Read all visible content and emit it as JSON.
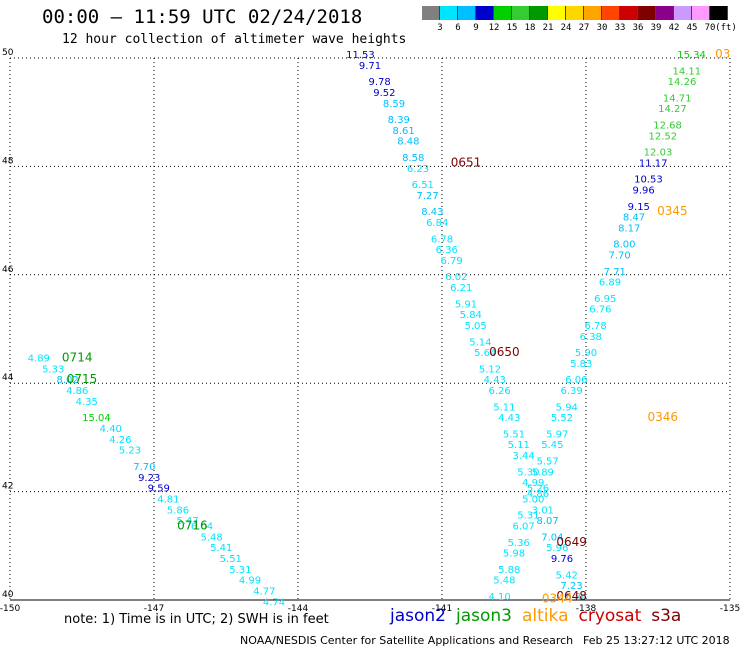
{
  "title": "00:00 — 11:59 UTC 02/24/2018",
  "subtitle": "12 hour collection of altimeter wave heights",
  "colorbar": {
    "unit": "(ft)",
    "labels": [
      "3",
      "6",
      "9",
      "12",
      "15",
      "18",
      "21",
      "24",
      "27",
      "30",
      "33",
      "36",
      "39",
      "42",
      "45",
      "70"
    ],
    "colors": [
      "#808080",
      "#00e5ff",
      "#00bfff",
      "#0000cd",
      "#00d000",
      "#33cc33",
      "#009900",
      "#ffff00",
      "#ffd700",
      "#ffa500",
      "#ff4500",
      "#cc0000",
      "#800000",
      "#8b008b",
      "#cc99ff",
      "#ff99ff",
      "#000000"
    ]
  },
  "note": "note: 1) Time is in UTC; 2) SWH is in feet",
  "legend": [
    {
      "label": "jason2",
      "color": "#0000cc"
    },
    {
      "label": "jason3",
      "color": "#009900"
    },
    {
      "label": "altika",
      "color": "#ff9900"
    },
    {
      "label": "cryosat",
      "color": "#cc0000"
    },
    {
      "label": "s3a",
      "color": "#800000"
    }
  ],
  "credit": "NOAA/NESDIS Center for Satellite Applications and Research",
  "timestamp": "Feb 25 13:27:12 UTC 2018",
  "chart_data": {
    "type": "scatter",
    "title": "00:00 — 11:59 UTC 02/24/2018",
    "subtitle": "12 hour collection of altimeter wave heights",
    "xlim": [
      -150,
      -135
    ],
    "ylim": [
      40,
      50
    ],
    "x_ticks": [
      "-150",
      "-147",
      "-144",
      "-141",
      "-138",
      "-135"
    ],
    "y_ticks": [
      "40",
      "42",
      "44",
      "46",
      "48",
      "50"
    ],
    "grid": true,
    "legend_position": "bottom",
    "series": [
      {
        "name": "west_track",
        "points": [
          {
            "x": -149.4,
            "y": 44.4,
            "v": "4.89",
            "c": "#00e5ff"
          },
          {
            "x": -149.1,
            "y": 44.2,
            "v": "5.33",
            "c": "#00e5ff"
          },
          {
            "x": -148.8,
            "y": 44.0,
            "v": "8.02",
            "c": "#00bfff"
          },
          {
            "x": -148.6,
            "y": 43.8,
            "v": "4.86",
            "c": "#00e5ff"
          },
          {
            "x": -148.4,
            "y": 43.6,
            "v": "4.35",
            "c": "#00e5ff"
          },
          {
            "x": -148.2,
            "y": 43.3,
            "v": "15.04",
            "c": "#00d000"
          },
          {
            "x": -147.9,
            "y": 43.1,
            "v": "4.40",
            "c": "#00e5ff"
          },
          {
            "x": -147.7,
            "y": 42.9,
            "v": "4.26",
            "c": "#00e5ff"
          },
          {
            "x": -147.5,
            "y": 42.7,
            "v": "5.23",
            "c": "#00e5ff"
          },
          {
            "x": -147.2,
            "y": 42.4,
            "v": "7.70",
            "c": "#00bfff"
          },
          {
            "x": -147.1,
            "y": 42.2,
            "v": "9.23",
            "c": "#0000cd"
          },
          {
            "x": -146.9,
            "y": 42.0,
            "v": "9.59",
            "c": "#0000cd"
          },
          {
            "x": -146.7,
            "y": 41.8,
            "v": "4.81",
            "c": "#00e5ff"
          },
          {
            "x": -146.5,
            "y": 41.6,
            "v": "5.86",
            "c": "#00e5ff"
          },
          {
            "x": -146.3,
            "y": 41.4,
            "v": "5.47",
            "c": "#00e5ff"
          },
          {
            "x": -146.0,
            "y": 41.3,
            "v": "6.04",
            "c": "#00e5ff"
          },
          {
            "x": -145.8,
            "y": 41.1,
            "v": "5.48",
            "c": "#00e5ff"
          },
          {
            "x": -145.6,
            "y": 40.9,
            "v": "5.41",
            "c": "#00e5ff"
          },
          {
            "x": -145.4,
            "y": 40.7,
            "v": "5.51",
            "c": "#00e5ff"
          },
          {
            "x": -145.2,
            "y": 40.5,
            "v": "5.31",
            "c": "#00e5ff"
          },
          {
            "x": -145.0,
            "y": 40.3,
            "v": "4.99",
            "c": "#00e5ff"
          },
          {
            "x": -144.7,
            "y": 40.1,
            "v": "4.77",
            "c": "#00e5ff"
          },
          {
            "x": -144.5,
            "y": 39.9,
            "v": "4.74",
            "c": "#00e5ff"
          }
        ]
      },
      {
        "name": "central_track",
        "points": [
          {
            "x": -142.7,
            "y": 50.0,
            "v": "11.53",
            "c": "#0000cd"
          },
          {
            "x": -142.5,
            "y": 49.8,
            "v": "9.71",
            "c": "#0000cd"
          },
          {
            "x": -142.3,
            "y": 49.5,
            "v": "9.78",
            "c": "#0000cd"
          },
          {
            "x": -142.2,
            "y": 49.3,
            "v": "9.52",
            "c": "#0000cd"
          },
          {
            "x": -142.0,
            "y": 49.1,
            "v": "8.59",
            "c": "#00bfff"
          },
          {
            "x": -141.9,
            "y": 48.8,
            "v": "8.39",
            "c": "#00bfff"
          },
          {
            "x": -141.8,
            "y": 48.6,
            "v": "8.61",
            "c": "#00bfff"
          },
          {
            "x": -141.7,
            "y": 48.4,
            "v": "8.48",
            "c": "#00bfff"
          },
          {
            "x": -141.6,
            "y": 48.1,
            "v": "8.58",
            "c": "#00bfff"
          },
          {
            "x": -141.5,
            "y": 47.9,
            "v": "6.23",
            "c": "#00e5ff"
          },
          {
            "x": -141.4,
            "y": 47.6,
            "v": "6.51",
            "c": "#00e5ff"
          },
          {
            "x": -141.3,
            "y": 47.4,
            "v": "7.27",
            "c": "#00bfff"
          },
          {
            "x": -141.2,
            "y": 47.1,
            "v": "8.43",
            "c": "#00bfff"
          },
          {
            "x": -141.1,
            "y": 46.9,
            "v": "6.84",
            "c": "#00e5ff"
          },
          {
            "x": -141.0,
            "y": 46.6,
            "v": "6.78",
            "c": "#00e5ff"
          },
          {
            "x": -140.9,
            "y": 46.4,
            "v": "6.36",
            "c": "#00e5ff"
          },
          {
            "x": -140.8,
            "y": 46.2,
            "v": "6.79",
            "c": "#00e5ff"
          },
          {
            "x": -140.7,
            "y": 45.9,
            "v": "6.02",
            "c": "#00e5ff"
          },
          {
            "x": -140.6,
            "y": 45.7,
            "v": "6.21",
            "c": "#00e5ff"
          },
          {
            "x": -140.5,
            "y": 45.4,
            "v": "5.91",
            "c": "#00e5ff"
          },
          {
            "x": -140.4,
            "y": 45.2,
            "v": "5.84",
            "c": "#00e5ff"
          },
          {
            "x": -140.3,
            "y": 45.0,
            "v": "5.05",
            "c": "#00e5ff"
          },
          {
            "x": -140.2,
            "y": 44.7,
            "v": "5.14",
            "c": "#00e5ff"
          },
          {
            "x": -140.1,
            "y": 44.5,
            "v": "5.64",
            "c": "#00e5ff"
          },
          {
            "x": -140.0,
            "y": 44.2,
            "v": "5.12",
            "c": "#00e5ff"
          },
          {
            "x": -139.9,
            "y": 44.0,
            "v": "4.43",
            "c": "#00e5ff"
          },
          {
            "x": -139.8,
            "y": 43.8,
            "v": "6.26",
            "c": "#00e5ff"
          },
          {
            "x": -139.7,
            "y": 43.5,
            "v": "5.11",
            "c": "#00e5ff"
          },
          {
            "x": -139.6,
            "y": 43.3,
            "v": "4.43",
            "c": "#00e5ff"
          },
          {
            "x": -139.5,
            "y": 43.0,
            "v": "5.51",
            "c": "#00e5ff"
          },
          {
            "x": -139.4,
            "y": 42.8,
            "v": "5.11",
            "c": "#00e5ff"
          },
          {
            "x": -139.3,
            "y": 42.6,
            "v": "3.44",
            "c": "#00e5ff"
          },
          {
            "x": -139.2,
            "y": 42.3,
            "v": "5.30",
            "c": "#00e5ff"
          },
          {
            "x": -139.1,
            "y": 42.1,
            "v": "4.99",
            "c": "#00e5ff"
          },
          {
            "x": -139.0,
            "y": 41.9,
            "v": "4.86",
            "c": "#00e5ff"
          },
          {
            "x": -138.9,
            "y": 41.6,
            "v": "3.01",
            "c": "#00e5ff"
          },
          {
            "x": -138.8,
            "y": 41.4,
            "v": "8.07",
            "c": "#00bfff"
          },
          {
            "x": -138.7,
            "y": 41.1,
            "v": "7.04",
            "c": "#00bfff"
          },
          {
            "x": -138.6,
            "y": 40.9,
            "v": "5.96",
            "c": "#00e5ff"
          },
          {
            "x": -138.5,
            "y": 40.7,
            "v": "9.76",
            "c": "#0000cd"
          },
          {
            "x": -138.4,
            "y": 40.4,
            "v": "5.42",
            "c": "#00e5ff"
          },
          {
            "x": -138.3,
            "y": 40.2,
            "v": "7.23",
            "c": "#00bfff"
          },
          {
            "x": -138.2,
            "y": 40.0,
            "v": "5.84",
            "c": "#00e5ff"
          }
        ]
      },
      {
        "name": "east_track",
        "points": [
          {
            "x": -135.8,
            "y": 50.0,
            "v": "15.34",
            "c": "#00d000"
          },
          {
            "x": -135.9,
            "y": 49.7,
            "v": "14.11",
            "c": "#33cc33"
          },
          {
            "x": -136.0,
            "y": 49.5,
            "v": "14.26",
            "c": "#33cc33"
          },
          {
            "x": -136.1,
            "y": 49.2,
            "v": "14.71",
            "c": "#33cc33"
          },
          {
            "x": -136.2,
            "y": 49.0,
            "v": "14.27",
            "c": "#33cc33"
          },
          {
            "x": -136.3,
            "y": 48.7,
            "v": "12.68",
            "c": "#33cc33"
          },
          {
            "x": -136.4,
            "y": 48.5,
            "v": "12.52",
            "c": "#33cc33"
          },
          {
            "x": -136.5,
            "y": 48.2,
            "v": "12.03",
            "c": "#33cc33"
          },
          {
            "x": -136.6,
            "y": 48.0,
            "v": "11.17",
            "c": "#0000cd"
          },
          {
            "x": -136.7,
            "y": 47.7,
            "v": "10.53",
            "c": "#0000cd"
          },
          {
            "x": -136.8,
            "y": 47.5,
            "v": "9.96",
            "c": "#0000cd"
          },
          {
            "x": -136.9,
            "y": 47.2,
            "v": "9.15",
            "c": "#0000cd"
          },
          {
            "x": -137.0,
            "y": 47.0,
            "v": "8.47",
            "c": "#00bfff"
          },
          {
            "x": -137.1,
            "y": 46.8,
            "v": "8.17",
            "c": "#00bfff"
          },
          {
            "x": -137.2,
            "y": 46.5,
            "v": "8.00",
            "c": "#00bfff"
          },
          {
            "x": -137.3,
            "y": 46.3,
            "v": "7.70",
            "c": "#00bfff"
          },
          {
            "x": -137.4,
            "y": 46.0,
            "v": "7.71",
            "c": "#00bfff"
          },
          {
            "x": -137.5,
            "y": 45.8,
            "v": "6.89",
            "c": "#00e5ff"
          },
          {
            "x": -137.6,
            "y": 45.5,
            "v": "6.95",
            "c": "#00e5ff"
          },
          {
            "x": -137.7,
            "y": 45.3,
            "v": "6.76",
            "c": "#00e5ff"
          },
          {
            "x": -137.8,
            "y": 45.0,
            "v": "6.78",
            "c": "#00e5ff"
          },
          {
            "x": -137.9,
            "y": 44.8,
            "v": "6.38",
            "c": "#00e5ff"
          },
          {
            "x": -138.0,
            "y": 44.5,
            "v": "5.90",
            "c": "#00e5ff"
          },
          {
            "x": -138.1,
            "y": 44.3,
            "v": "5.83",
            "c": "#00e5ff"
          },
          {
            "x": -138.2,
            "y": 44.0,
            "v": "6.06",
            "c": "#00e5ff"
          },
          {
            "x": -138.3,
            "y": 43.8,
            "v": "6.39",
            "c": "#00e5ff"
          },
          {
            "x": -138.4,
            "y": 43.5,
            "v": "5.94",
            "c": "#00e5ff"
          },
          {
            "x": -138.5,
            "y": 43.3,
            "v": "5.52",
            "c": "#00e5ff"
          },
          {
            "x": -138.6,
            "y": 43.0,
            "v": "5.97",
            "c": "#00e5ff"
          },
          {
            "x": -138.7,
            "y": 42.8,
            "v": "5.45",
            "c": "#00e5ff"
          },
          {
            "x": -138.8,
            "y": 42.5,
            "v": "5.57",
            "c": "#00e5ff"
          },
          {
            "x": -138.9,
            "y": 42.3,
            "v": "5.89",
            "c": "#00e5ff"
          },
          {
            "x": -139.0,
            "y": 42.0,
            "v": "5.26",
            "c": "#00e5ff"
          },
          {
            "x": -139.1,
            "y": 41.8,
            "v": "5.00",
            "c": "#00e5ff"
          },
          {
            "x": -139.2,
            "y": 41.5,
            "v": "5.31",
            "c": "#00e5ff"
          },
          {
            "x": -139.3,
            "y": 41.3,
            "v": "6.07",
            "c": "#00e5ff"
          },
          {
            "x": -139.4,
            "y": 41.0,
            "v": "5.36",
            "c": "#00e5ff"
          },
          {
            "x": -139.5,
            "y": 40.8,
            "v": "5.98",
            "c": "#00e5ff"
          },
          {
            "x": -139.6,
            "y": 40.5,
            "v": "5.88",
            "c": "#00e5ff"
          },
          {
            "x": -139.7,
            "y": 40.3,
            "v": "5.48",
            "c": "#00e5ff"
          },
          {
            "x": -139.8,
            "y": 40.0,
            "v": "4.10",
            "c": "#00e5ff"
          }
        ]
      }
    ],
    "time_labels": [
      {
        "x": -148.6,
        "y": 44.4,
        "v": "0714",
        "c": "#009900"
      },
      {
        "x": -148.5,
        "y": 44.0,
        "v": "0715",
        "c": "#009900"
      },
      {
        "x": -146.2,
        "y": 41.3,
        "v": "0716",
        "c": "#009900"
      },
      {
        "x": -140.5,
        "y": 48.0,
        "v": "0651",
        "c": "#800000"
      },
      {
        "x": -139.7,
        "y": 44.5,
        "v": "0650",
        "c": "#800000"
      },
      {
        "x": -138.3,
        "y": 41.0,
        "v": "0649",
        "c": "#800000"
      },
      {
        "x": -138.3,
        "y": 40.0,
        "v": "0648",
        "c": "#800000"
      },
      {
        "x": -136.2,
        "y": 47.1,
        "v": "0345",
        "c": "#ff9900"
      },
      {
        "x": -136.4,
        "y": 43.3,
        "v": "0346",
        "c": "#ff9900"
      },
      {
        "x": -135.15,
        "y": 50.0,
        "v": "03",
        "c": "#ff9900"
      },
      {
        "x": -138.6,
        "y": 39.95,
        "v": "0344",
        "c": "#ff9900"
      }
    ]
  }
}
